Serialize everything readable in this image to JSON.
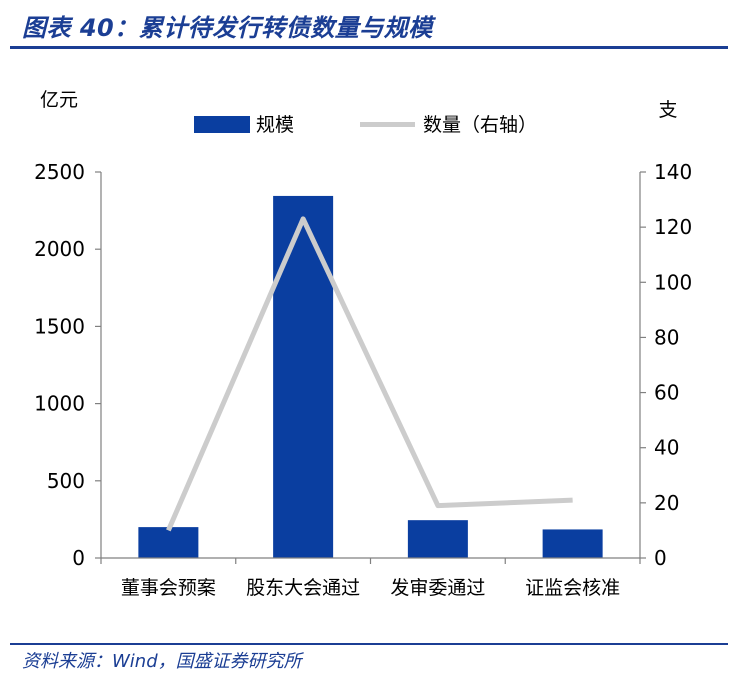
{
  "title": "图表 40：累计待发行转债数量与规模",
  "source": "资料来源：Wind，国盛证券研究所",
  "colors": {
    "accent": "#1b3e94",
    "bar": "#0a3ea0",
    "line": "#cccccc"
  },
  "chart_data": {
    "type": "bar",
    "categories": [
      "董事会预案",
      "股东大会通过",
      "发审委通过",
      "证监会核准"
    ],
    "series": [
      {
        "name": "规模",
        "type": "bar",
        "axis": "left",
        "values": [
          200,
          2345,
          245,
          185
        ]
      },
      {
        "name": "数量（右轴）",
        "type": "line",
        "axis": "right",
        "values": [
          10,
          123,
          19,
          21
        ]
      }
    ],
    "ylabel": "亿元",
    "ylabel_right": "支",
    "ylim": [
      0,
      2500
    ],
    "ylim_right": [
      0,
      140
    ],
    "yticks": [
      "0",
      "500",
      "1000",
      "1500",
      "2000",
      "2500"
    ],
    "yticks_right": [
      "0",
      "20",
      "40",
      "60",
      "80",
      "100",
      "120",
      "140"
    ],
    "grid": false,
    "legend_position": "top"
  }
}
